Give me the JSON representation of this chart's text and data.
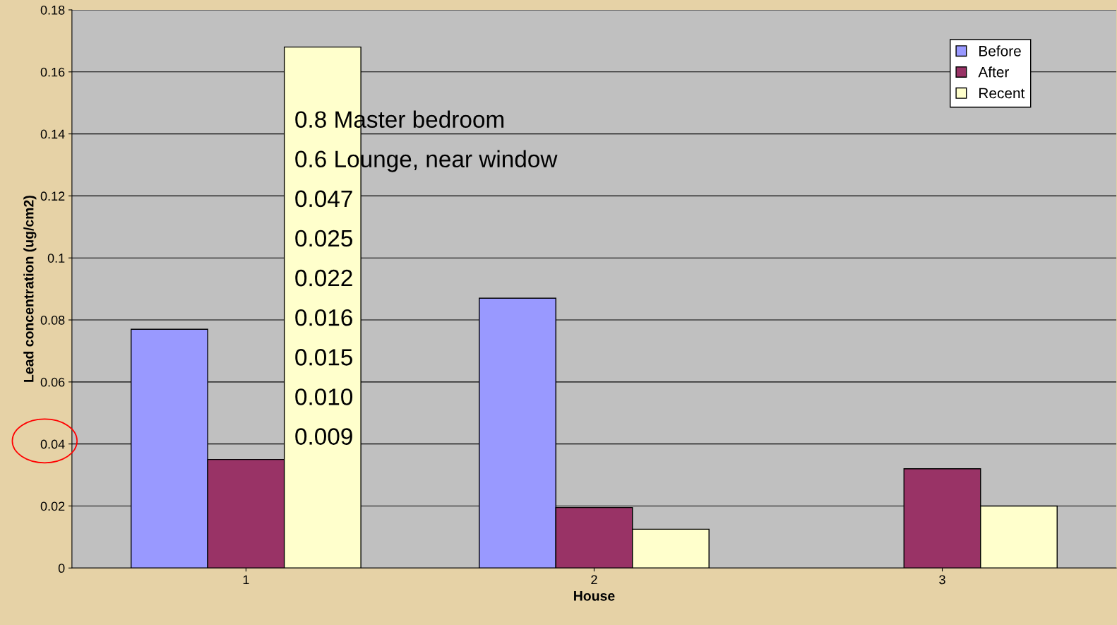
{
  "chart_data": {
    "type": "bar",
    "xlabel": "House",
    "ylabel": "Lead concentration (ug/cm2)",
    "categories": [
      "1",
      "2",
      "3"
    ],
    "series": [
      {
        "name": "Before",
        "color": "#9999ff",
        "values": [
          0.077,
          0.087,
          null
        ]
      },
      {
        "name": "After",
        "color": "#993366",
        "values": [
          0.035,
          0.0195,
          0.032
        ]
      },
      {
        "name": "Recent",
        "color": "#ffffcc",
        "values": [
          0.168,
          0.0125,
          0.02
        ]
      }
    ],
    "ylim": [
      0,
      0.18
    ],
    "yticks": [
      0,
      0.02,
      0.04,
      0.06,
      0.08,
      0.1,
      0.12,
      0.14,
      0.16,
      0.18
    ],
    "grid": "y",
    "legend": "top right",
    "annotations": [
      "0.8 Master bedroom",
      "0.6 Lounge, near window",
      "0.047",
      "0.025",
      "0.022",
      "0.016",
      "0.015",
      "0.010",
      "0.009"
    ]
  }
}
